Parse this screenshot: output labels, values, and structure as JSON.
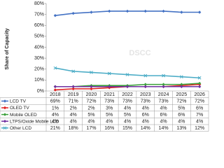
{
  "chart_data": {
    "type": "line",
    "y_label": "Share of Capacity",
    "watermark": "DSCC",
    "categories": [
      "2018",
      "2019",
      "2020",
      "2021",
      "2022",
      "2023",
      "2024",
      "2025",
      "2026"
    ],
    "ylim": [
      0,
      80
    ],
    "yticks": [
      {
        "value": 0,
        "label": "0%"
      },
      {
        "value": 10,
        "label": "10%"
      },
      {
        "value": 20,
        "label": "20%"
      },
      {
        "value": 30,
        "label": "30%"
      },
      {
        "value": 40,
        "label": "40%"
      },
      {
        "value": 50,
        "label": "50%"
      },
      {
        "value": 60,
        "label": "60%"
      },
      {
        "value": 70,
        "label": "70%"
      },
      {
        "value": 80,
        "label": "80%"
      }
    ],
    "series": [
      {
        "name": "LCD TV",
        "color": "#4472c4",
        "values": [
          69,
          71,
          72,
          73,
          73,
          73,
          73,
          72,
          72
        ],
        "value_labels": [
          "69%",
          "71%",
          "72%",
          "73%",
          "73%",
          "73%",
          "73%",
          "72%",
          "72%"
        ]
      },
      {
        "name": "OLED TV",
        "color": "#e02020",
        "values": [
          1,
          2,
          2,
          3,
          4,
          4,
          4,
          5,
          6
        ],
        "value_labels": [
          "1%",
          "2%",
          "2%",
          "3%",
          "4%",
          "4%",
          "4%",
          "5%",
          "6%"
        ]
      },
      {
        "name": "Mobile OLED",
        "color": "#3aa03a",
        "values": [
          4,
          4,
          5,
          5,
          5,
          6,
          6,
          6,
          7
        ],
        "value_labels": [
          "4%",
          "4%",
          "5%",
          "5%",
          "5%",
          "6%",
          "6%",
          "6%",
          "7%"
        ]
      },
      {
        "name": "LTPS/Oxide Mobile LCD",
        "color": "#7030a0",
        "values": [
          4,
          4,
          4,
          4,
          4,
          4,
          4,
          4,
          4
        ],
        "value_labels": [
          "4%",
          "4%",
          "4%",
          "4%",
          "4%",
          "4%",
          "4%",
          "4%",
          "4%"
        ]
      },
      {
        "name": "Other LCD",
        "color": "#4bacc6",
        "values": [
          21,
          18,
          17,
          16,
          15,
          14,
          14,
          13,
          12
        ],
        "value_labels": [
          "21%",
          "18%",
          "17%",
          "16%",
          "15%",
          "14%",
          "14%",
          "13%",
          "12%"
        ]
      }
    ]
  }
}
